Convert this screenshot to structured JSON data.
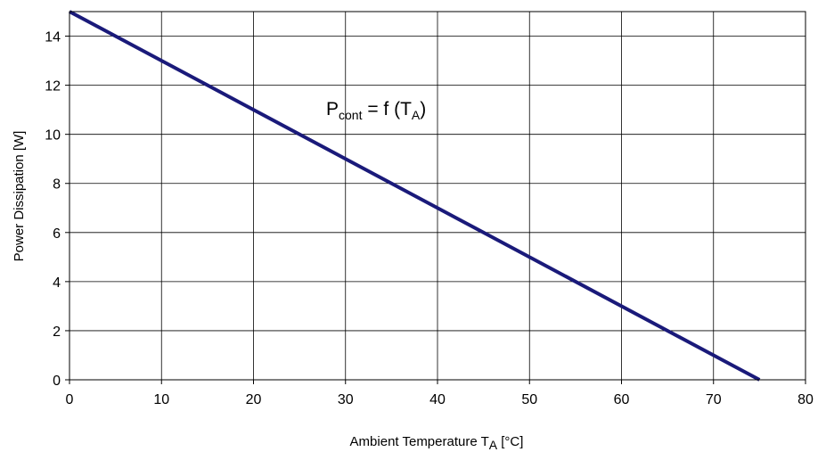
{
  "chart_data": {
    "type": "line",
    "xlabel": {
      "main": "Ambient Temperature T",
      "sub": "A",
      "unit": " [°C]"
    },
    "ylabel": "Power Dissipation [W]",
    "xlim": [
      0,
      80
    ],
    "ylim": [
      0,
      15
    ],
    "xticks": [
      0,
      10,
      20,
      30,
      40,
      50,
      60,
      70,
      80
    ],
    "yticks": [
      0,
      2,
      4,
      6,
      8,
      10,
      12,
      14
    ],
    "grid": true,
    "series": [
      {
        "color": "#1a1a7a",
        "points": [
          [
            0,
            15
          ],
          [
            75,
            0
          ]
        ]
      }
    ],
    "annotation": {
      "P": "P",
      "cont": "cont",
      "rest": " = f (T",
      "A": "A",
      "close": ")"
    }
  }
}
